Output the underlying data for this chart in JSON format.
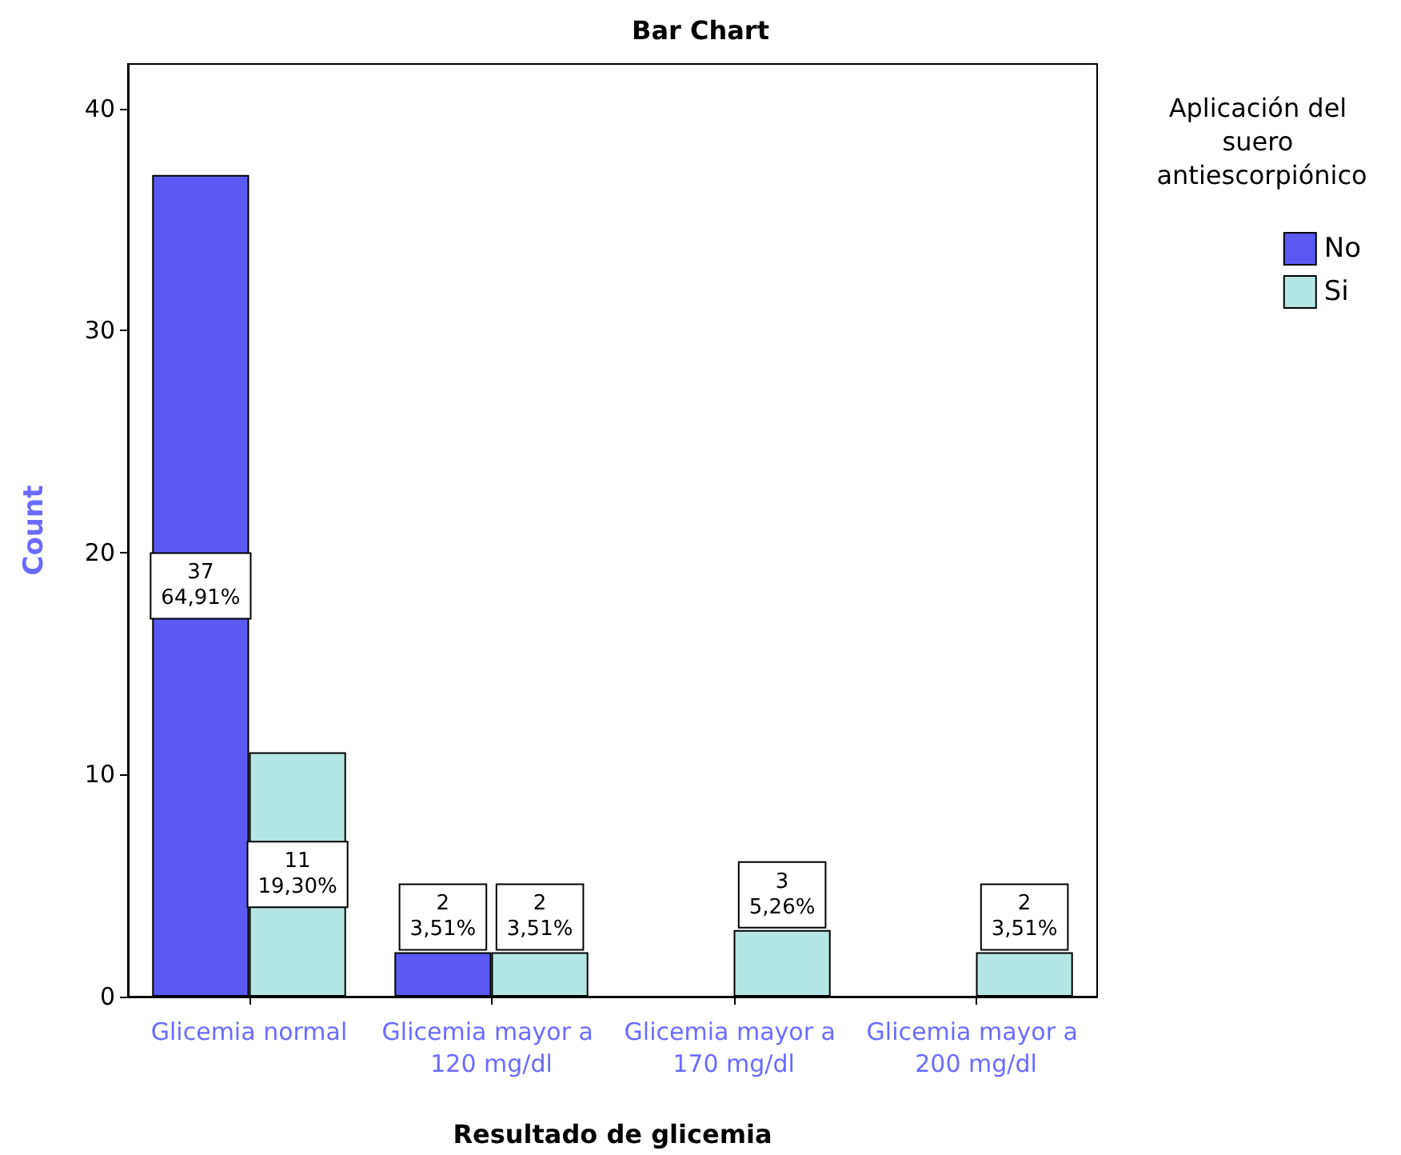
{
  "chart_data": {
    "type": "bar",
    "title": "Bar Chart",
    "xlabel": "Resultado de glicemia",
    "ylabel": "Count",
    "legend_title": "Aplicación del suero antiescorpiónico",
    "categories": [
      "Glicemia normal",
      "Glicemia mayor a 120 mg/dl",
      "Glicemia mayor a 170 mg/dl",
      "Glicemia mayor a 200 mg/dl"
    ],
    "series": [
      {
        "name": "No",
        "color": "#5a5af2",
        "values": [
          37,
          2,
          null,
          null
        ],
        "value_labels": [
          "37\n64,91%",
          "2\n3,51%",
          null,
          null
        ]
      },
      {
        "name": "Si",
        "color": "#b4e6e3",
        "values": [
          11,
          2,
          3,
          2
        ],
        "value_labels": [
          "11\n19,30%",
          "2\n3,51%",
          "3\n5,26%",
          "2\n3,51%"
        ]
      }
    ],
    "ylim": [
      0,
      42
    ],
    "yticks": [
      0,
      10,
      20,
      30,
      40
    ],
    "grid": false,
    "legend": "right"
  }
}
